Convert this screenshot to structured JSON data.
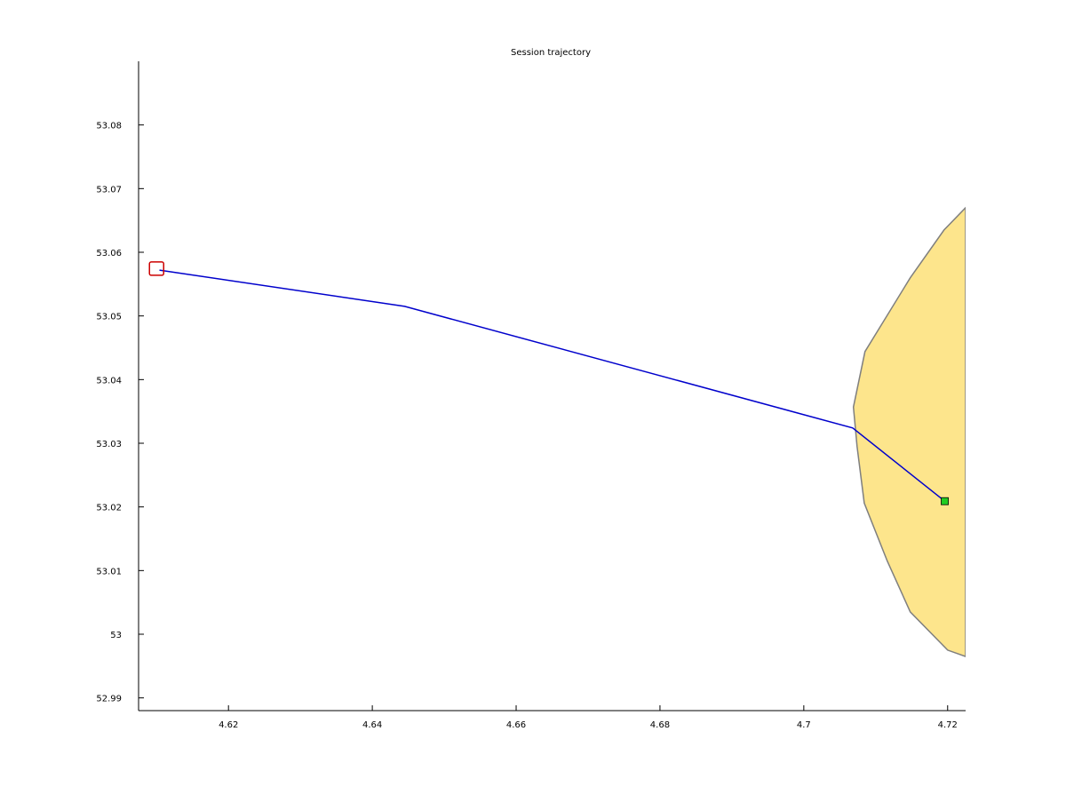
{
  "chart_data": {
    "type": "line",
    "title": "Session trajectory",
    "xlabel": "",
    "ylabel": "",
    "xlim": [
      4.6075,
      4.7225
    ],
    "ylim": [
      52.988,
      53.09
    ],
    "xticks": [
      4.62,
      4.64,
      4.66,
      4.68,
      4.7,
      4.72
    ],
    "xtick_labels": [
      "4.62",
      "4.64",
      "4.66",
      "4.68",
      "4.7",
      "4.72"
    ],
    "yticks": [
      52.99,
      53.0,
      53.01,
      53.02,
      53.03,
      53.04,
      53.05,
      53.06,
      53.07,
      53.08
    ],
    "ytick_labels": [
      "52.99",
      "53",
      "53.01",
      "53.02",
      "53.03",
      "53.04",
      "53.05",
      "53.06",
      "53.07",
      "53.08"
    ],
    "grid": false,
    "series": [
      {
        "role": "trajectory",
        "color": "#0000cc",
        "x": [
          4.6104,
          4.6445,
          4.7068,
          4.7196
        ],
        "y": [
          53.0572,
          53.0515,
          53.0324,
          53.0209
        ]
      }
    ],
    "region": {
      "fill": "#fde58c",
      "stroke": "#7f7f7f",
      "x": [
        4.7225,
        4.7195,
        4.7148,
        4.7085,
        4.7069,
        4.7074,
        4.7084,
        4.7116,
        4.7148,
        4.72,
        4.7225
      ],
      "y": [
        53.067,
        53.0635,
        53.056,
        53.0444,
        53.0357,
        53.0295,
        53.0206,
        53.0115,
        53.0035,
        52.9975,
        52.9965
      ]
    },
    "markers": {
      "start": {
        "x": 4.61,
        "y": 53.0575,
        "shape": "square",
        "color": "#cc0000"
      },
      "end": {
        "x": 4.7196,
        "y": 53.0209,
        "shape": "square",
        "color": "#22cc22"
      }
    }
  }
}
